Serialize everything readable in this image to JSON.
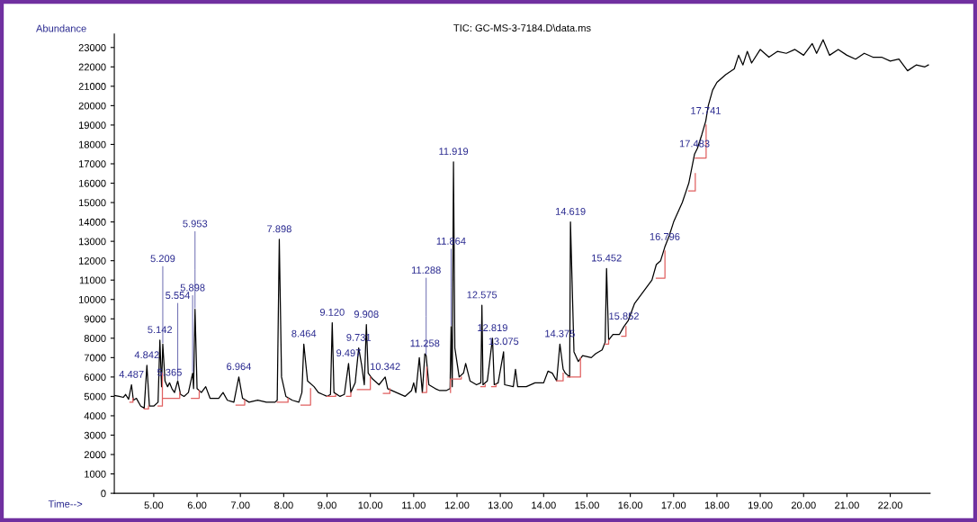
{
  "chart_data": {
    "type": "line",
    "title": "TIC: GC-MS-3-7184.D\\data.ms",
    "xlabel": "Time-->",
    "ylabel": "Abundance",
    "xlim": [
      4.09,
      22.92
    ],
    "xticks": [
      {
        "value": 5,
        "label": "5.00"
      },
      {
        "value": 6,
        "label": "6.00"
      },
      {
        "value": 7,
        "label": "7.00"
      },
      {
        "value": 8,
        "label": "8.00"
      },
      {
        "value": 9,
        "label": "9.00"
      },
      {
        "value": 10,
        "label": "10.00"
      },
      {
        "value": 11,
        "label": "11.00"
      },
      {
        "value": 12,
        "label": "12.00"
      },
      {
        "value": 13,
        "label": "13.00"
      },
      {
        "value": 14,
        "label": "14.00"
      },
      {
        "value": 15,
        "label": "15.00"
      },
      {
        "value": 16,
        "label": "16.00"
      },
      {
        "value": 17,
        "label": "17.00"
      },
      {
        "value": 18,
        "label": "18.00"
      },
      {
        "value": 19,
        "label": "19.00"
      },
      {
        "value": 20,
        "label": "20.00"
      },
      {
        "value": 21,
        "label": "21.00"
      },
      {
        "value": 22,
        "label": "22.00"
      }
    ],
    "ylim": [
      0,
      23700
    ],
    "yticks": [
      0,
      1000,
      2000,
      3000,
      4000,
      5000,
      6000,
      7000,
      8000,
      9000,
      10000,
      11000,
      12000,
      13000,
      14000,
      15000,
      16000,
      17000,
      18000,
      19000,
      20000,
      21000,
      22000,
      23000
    ],
    "grid": false,
    "series": [
      {
        "color": "#000000",
        "x": [
          4.09,
          4.2,
          4.3,
          4.35,
          4.42,
          4.487,
          4.53,
          4.6,
          4.7,
          4.78,
          4.842,
          4.9,
          5.0,
          5.1,
          5.142,
          5.18,
          5.209,
          5.26,
          5.32,
          5.365,
          5.42,
          5.48,
          5.554,
          5.62,
          5.7,
          5.8,
          5.898,
          5.92,
          5.953,
          6.0,
          6.1,
          6.2,
          6.3,
          6.5,
          6.6,
          6.7,
          6.85,
          6.964,
          7.05,
          7.2,
          7.4,
          7.6,
          7.8,
          7.85,
          7.898,
          7.95,
          8.05,
          8.2,
          8.35,
          8.42,
          8.464,
          8.55,
          8.7,
          8.8,
          8.9,
          9.0,
          9.08,
          9.12,
          9.16,
          9.3,
          9.4,
          9.497,
          9.55,
          9.65,
          9.731,
          9.8,
          9.86,
          9.908,
          9.95,
          10.05,
          10.2,
          10.342,
          10.4,
          10.6,
          10.8,
          10.95,
          11.0,
          11.05,
          11.13,
          11.2,
          11.258,
          11.288,
          11.35,
          11.5,
          11.6,
          11.75,
          11.84,
          11.864,
          11.89,
          11.919,
          11.95,
          12.05,
          12.15,
          12.2,
          12.3,
          12.45,
          12.55,
          12.575,
          12.6,
          12.7,
          12.819,
          12.86,
          12.95,
          13.075,
          13.1,
          13.3,
          13.35,
          13.4,
          13.6,
          13.8,
          14.0,
          14.1,
          14.2,
          14.3,
          14.375,
          14.45,
          14.5,
          14.6,
          14.619,
          14.7,
          14.8,
          14.9,
          15.1,
          15.2,
          15.35,
          15.42,
          15.452,
          15.5,
          15.6,
          15.75,
          15.852,
          15.95,
          16.1,
          16.3,
          16.5,
          16.6,
          16.7,
          16.796,
          16.9,
          17.0,
          17.2,
          17.35,
          17.483,
          17.55,
          17.65,
          17.741,
          17.8,
          17.9,
          18.0,
          18.2,
          18.4,
          18.5,
          18.6,
          18.7,
          18.8,
          19.0,
          19.2,
          19.4,
          19.6,
          19.8,
          20.0,
          20.2,
          20.3,
          20.45,
          20.6,
          20.8,
          21.0,
          21.2,
          21.4,
          21.6,
          21.8,
          22.0,
          22.2,
          22.4,
          22.6,
          22.8,
          22.88
        ],
        "values": [
          5050,
          5000,
          4950,
          5100,
          4850,
          5600,
          4800,
          4900,
          4500,
          4400,
          6600,
          4500,
          4500,
          4700,
          7900,
          5500,
          7700,
          5800,
          5500,
          5700,
          5400,
          5200,
          5800,
          5100,
          5000,
          5200,
          6200,
          5400,
          9500,
          5400,
          5200,
          5500,
          4900,
          4900,
          5200,
          4800,
          4700,
          6000,
          4900,
          4700,
          4800,
          4700,
          4700,
          4800,
          13100,
          6000,
          5000,
          4800,
          4700,
          5200,
          7700,
          5800,
          5500,
          5200,
          5100,
          5000,
          5100,
          8800,
          5200,
          5000,
          5100,
          6700,
          5200,
          5700,
          7500,
          6600,
          5600,
          8700,
          6200,
          5900,
          5600,
          6000,
          5400,
          5200,
          5000,
          5300,
          5700,
          5200,
          7000,
          5200,
          7200,
          7100,
          5600,
          5400,
          5300,
          5300,
          5400,
          8600,
          5500,
          17100,
          7500,
          6000,
          6200,
          6700,
          5800,
          5600,
          5700,
          9700,
          5600,
          5800,
          8000,
          5600,
          5700,
          7300,
          5600,
          5500,
          6400,
          5500,
          5500,
          5700,
          5700,
          6300,
          6200,
          5800,
          7700,
          6400,
          6200,
          6000,
          14000,
          7300,
          6800,
          7100,
          7000,
          7200,
          7400,
          7800,
          11600,
          7900,
          8200,
          8200,
          8600,
          8900,
          9800,
          10400,
          11000,
          11800,
          12000,
          12700,
          13300,
          14000,
          15000,
          16000,
          17500,
          17800,
          18500,
          19200,
          20000,
          20800,
          21200,
          21600,
          21900,
          22600,
          22100,
          22800,
          22200,
          22900,
          22500,
          22800,
          22700,
          22900,
          22600,
          23200,
          22700,
          23400,
          22600,
          22900,
          22600,
          22400,
          22700,
          22500,
          22500,
          22300,
          22400,
          21800,
          22100,
          22000,
          22100
        ]
      },
      {
        "color": "#e06060",
        "x": [
          4.45,
          4.52,
          4.52,
          null,
          4.78,
          4.88,
          4.88,
          null,
          5.1,
          5.2,
          5.2,
          null,
          5.22,
          5.6,
          5.6,
          null,
          5.87,
          6.05,
          6.05,
          null,
          6.9,
          7.1,
          7.1,
          null,
          7.85,
          8.1,
          8.1,
          null,
          8.4,
          8.62,
          8.62,
          null,
          9.0,
          9.2,
          9.2,
          null,
          9.45,
          9.55,
          9.55,
          null,
          9.7,
          10.0,
          10.0,
          null,
          10.3,
          10.45,
          10.45,
          null,
          11.2,
          11.3,
          11.3,
          null,
          11.85,
          11.85,
          12.1,
          12.1,
          null,
          12.55,
          12.65,
          12.65,
          null,
          12.8,
          12.9,
          12.9,
          null,
          14.3,
          14.45,
          14.45,
          null,
          14.55,
          14.85,
          14.85,
          null,
          15.42,
          15.5,
          15.5,
          null,
          15.8,
          15.9,
          15.9,
          null,
          16.6,
          16.8,
          16.8,
          null,
          17.35,
          17.5,
          17.5,
          null,
          17.5,
          17.75,
          17.75
        ],
        "values": [
          4700,
          4700,
          4900,
          null,
          4350,
          4350,
          4500,
          null,
          4500,
          4500,
          6200,
          null,
          4900,
          4900,
          5200,
          null,
          4900,
          4900,
          5300,
          null,
          4550,
          4550,
          4800,
          null,
          4700,
          4700,
          4900,
          null,
          4550,
          4550,
          5400,
          null,
          5000,
          5000,
          5100,
          null,
          5000,
          5000,
          5200,
          null,
          5350,
          5350,
          6000,
          null,
          5150,
          5150,
          5400,
          null,
          5200,
          5200,
          6500,
          null,
          5200,
          5900,
          5900,
          6000,
          null,
          5500,
          5500,
          5600,
          null,
          5500,
          5500,
          5600,
          null,
          5800,
          5800,
          6200,
          null,
          6000,
          6000,
          7000,
          null,
          7700,
          7700,
          7900,
          null,
          8100,
          8100,
          8600,
          null,
          11100,
          11100,
          12500,
          null,
          15600,
          15600,
          16500,
          null,
          17300,
          17300,
          19000
        ]
      }
    ],
    "annotations": [
      {
        "text": "4.487",
        "x": 4.487,
        "y": 5600
      },
      {
        "text": "4.842",
        "x": 4.842,
        "y": 6600
      },
      {
        "text": "5.142",
        "x": 5.142,
        "y": 7900
      },
      {
        "text": "5.209",
        "x": 5.209,
        "y": 7700
      },
      {
        "text": "5.365",
        "x": 5.365,
        "y": 5700
      },
      {
        "text": "5.554",
        "x": 5.554,
        "y": 5800
      },
      {
        "text": "5.898",
        "x": 5.898,
        "y": 6200
      },
      {
        "text": "5.953",
        "x": 5.953,
        "y": 9500
      },
      {
        "text": "6.964",
        "x": 6.964,
        "y": 6000
      },
      {
        "text": "7.898",
        "x": 7.898,
        "y": 13100
      },
      {
        "text": "8.464",
        "x": 8.464,
        "y": 7700
      },
      {
        "text": "9.120",
        "x": 9.12,
        "y": 8800
      },
      {
        "text": "9.497",
        "x": 9.497,
        "y": 6700
      },
      {
        "text": "9.731",
        "x": 9.731,
        "y": 7500
      },
      {
        "text": "9.908",
        "x": 9.908,
        "y": 8700
      },
      {
        "text": "10.342",
        "x": 10.342,
        "y": 6000
      },
      {
        "text": "11.258",
        "x": 11.258,
        "y": 7200
      },
      {
        "text": "11.288",
        "x": 11.288,
        "y": 7100
      },
      {
        "text": "11.864",
        "x": 11.864,
        "y": 8600
      },
      {
        "text": "11.919",
        "x": 11.919,
        "y": 17100
      },
      {
        "text": "12.575",
        "x": 12.575,
        "y": 9700
      },
      {
        "text": "12.819",
        "x": 12.819,
        "y": 8000
      },
      {
        "text": "13.075",
        "x": 13.075,
        "y": 7300
      },
      {
        "text": "14.375",
        "x": 14.375,
        "y": 7700
      },
      {
        "text": "14.619",
        "x": 14.619,
        "y": 14000
      },
      {
        "text": "15.452",
        "x": 15.452,
        "y": 11600
      },
      {
        "text": "15.852",
        "x": 15.852,
        "y": 8600
      },
      {
        "text": "16.796",
        "x": 16.796,
        "y": 12700
      },
      {
        "text": "17.483",
        "x": 17.483,
        "y": 17500
      },
      {
        "text": "17.741",
        "x": 17.741,
        "y": 19200
      }
    ]
  }
}
